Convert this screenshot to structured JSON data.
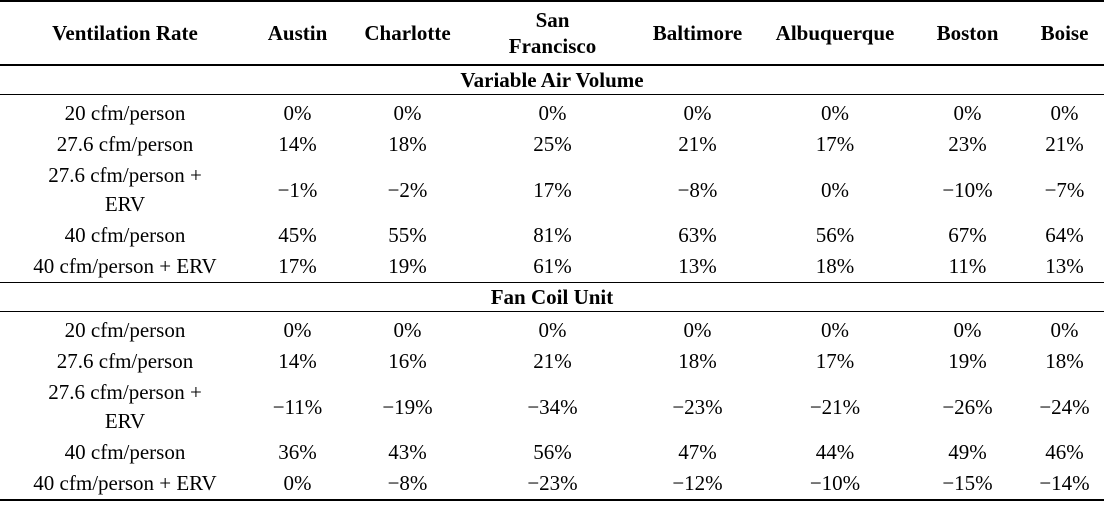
{
  "headers": [
    "Ventilation Rate",
    "Austin",
    "Charlotte",
    "San Francisco",
    "Baltimore",
    "Albuquerque",
    "Boston",
    "Boise"
  ],
  "header_lines": {
    "sf_line1": "San",
    "sf_line2": "Francisco"
  },
  "sections": [
    {
      "title": "Variable Air Volume",
      "rows": [
        {
          "label": "20 cfm/person",
          "values": [
            "0%",
            "0%",
            "0%",
            "0%",
            "0%",
            "0%",
            "0%"
          ]
        },
        {
          "label": "27.6 cfm/person",
          "values": [
            "14%",
            "18%",
            "25%",
            "21%",
            "17%",
            "23%",
            "21%"
          ]
        },
        {
          "label_line1": "27.6 cfm/person +",
          "label_line2": "ERV",
          "values": [
            "−1%",
            "−2%",
            "17%",
            "−8%",
            "0%",
            "−10%",
            "−7%"
          ]
        },
        {
          "label": "40 cfm/person",
          "values": [
            "45%",
            "55%",
            "81%",
            "63%",
            "56%",
            "67%",
            "64%"
          ]
        },
        {
          "label": "40 cfm/person + ERV",
          "values": [
            "17%",
            "19%",
            "61%",
            "13%",
            "18%",
            "11%",
            "13%"
          ]
        }
      ]
    },
    {
      "title": "Fan Coil Unit",
      "rows": [
        {
          "label": "20 cfm/person",
          "values": [
            "0%",
            "0%",
            "0%",
            "0%",
            "0%",
            "0%",
            "0%"
          ]
        },
        {
          "label": "27.6 cfm/person",
          "values": [
            "14%",
            "16%",
            "21%",
            "18%",
            "17%",
            "19%",
            "18%"
          ]
        },
        {
          "label_line1": "27.6 cfm/person +",
          "label_line2": "ERV",
          "values": [
            "−11%",
            "−19%",
            "−34%",
            "−23%",
            "−21%",
            "−26%",
            "−24%"
          ]
        },
        {
          "label": "40 cfm/person",
          "values": [
            "36%",
            "43%",
            "56%",
            "47%",
            "44%",
            "49%",
            "46%"
          ]
        },
        {
          "label": "40 cfm/person + ERV",
          "values": [
            "0%",
            "−8%",
            "−23%",
            "−12%",
            "−10%",
            "−15%",
            "−14%"
          ]
        }
      ]
    }
  ]
}
